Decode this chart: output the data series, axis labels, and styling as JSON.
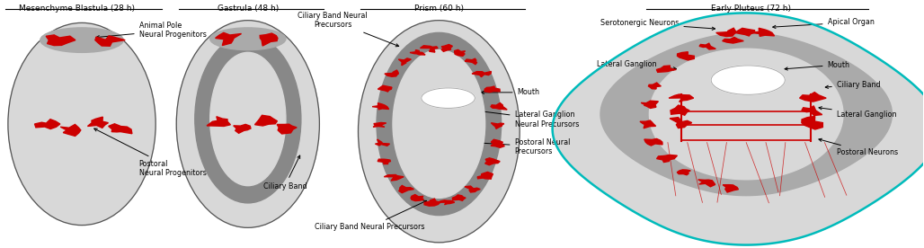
{
  "panel1_title": "Mesenchyme Blastula (28 h)",
  "panel2_title": "Gastrula (48 h)",
  "panel3_title": "Prism (60 h)",
  "panel4_title": "Early Pluteus (72 h)",
  "bg_color": "#ffffff",
  "light_gray": "#d8d8d8",
  "mid_gray": "#aaaaaa",
  "dark_gray": "#888888",
  "red": "#cc0000",
  "teal": "#00bbbb",
  "outline_color": "#555555"
}
